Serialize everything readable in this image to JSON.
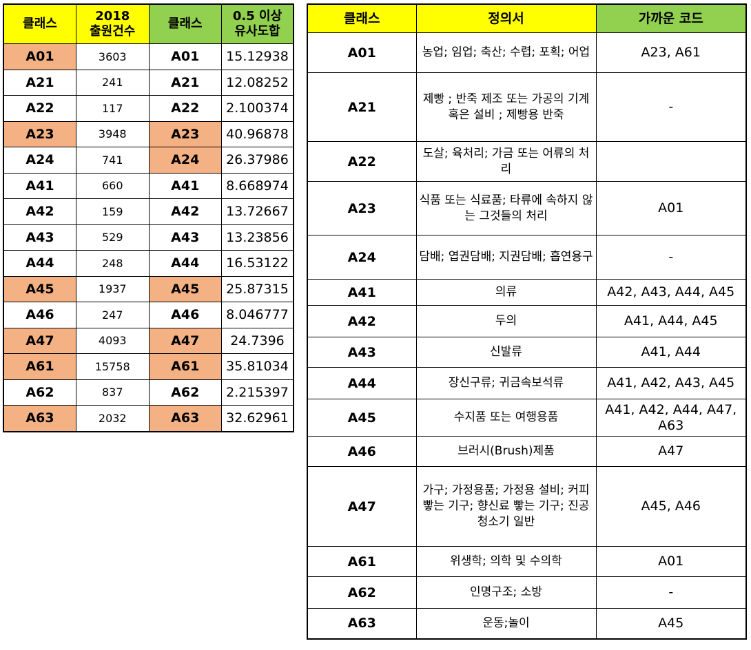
{
  "left_table": {
    "headers": {
      "class1": "클래스",
      "count": "2018\n출원건수",
      "class2": "클래스",
      "similarity": "0.5 이상\n유사도합"
    },
    "rows": [
      {
        "class": "A01",
        "count": "3603",
        "class2": "A01",
        "sim": "15.12938",
        "hl1": true,
        "hl2": false
      },
      {
        "class": "A21",
        "count": "241",
        "class2": "A21",
        "sim": "12.08252",
        "hl1": false,
        "hl2": false
      },
      {
        "class": "A22",
        "count": "117",
        "class2": "A22",
        "sim": "2.100374",
        "hl1": false,
        "hl2": false
      },
      {
        "class": "A23",
        "count": "3948",
        "class2": "A23",
        "sim": "40.96878",
        "hl1": true,
        "hl2": true
      },
      {
        "class": "A24",
        "count": "741",
        "class2": "A24",
        "sim": "26.37986",
        "hl1": false,
        "hl2": true
      },
      {
        "class": "A41",
        "count": "660",
        "class2": "A41",
        "sim": "8.668974",
        "hl1": false,
        "hl2": false
      },
      {
        "class": "A42",
        "count": "159",
        "class2": "A42",
        "sim": "13.72667",
        "hl1": false,
        "hl2": false
      },
      {
        "class": "A43",
        "count": "529",
        "class2": "A43",
        "sim": "13.23856",
        "hl1": false,
        "hl2": false
      },
      {
        "class": "A44",
        "count": "248",
        "class2": "A44",
        "sim": "16.53122",
        "hl1": false,
        "hl2": false
      },
      {
        "class": "A45",
        "count": "1937",
        "class2": "A45",
        "sim": "25.87315",
        "hl1": true,
        "hl2": true
      },
      {
        "class": "A46",
        "count": "247",
        "class2": "A46",
        "sim": "8.046777",
        "hl1": false,
        "hl2": false
      },
      {
        "class": "A47",
        "count": "4093",
        "class2": "A47",
        "sim": "24.7396",
        "hl1": true,
        "hl2": true
      },
      {
        "class": "A61",
        "count": "15758",
        "class2": "A61",
        "sim": "35.81034",
        "hl1": true,
        "hl2": true
      },
      {
        "class": "A62",
        "count": "837",
        "class2": "A62",
        "sim": "2.215397",
        "hl1": false,
        "hl2": false
      },
      {
        "class": "A63",
        "count": "2032",
        "class2": "A63",
        "sim": "32.62961",
        "hl1": true,
        "hl2": true
      }
    ]
  },
  "right_table": {
    "headers": {
      "class": "클래스",
      "definition": "정의서",
      "near": "가까운 코드"
    },
    "rows": [
      {
        "class": "A01",
        "definition": "농업; 임업; 축산; 수렵; 포획; 어업",
        "near": "A23, A61"
      },
      {
        "class": "A21",
        "definition": "제빵 ; 반죽 제조 또는 가공의 기계 혹은 설비 ; 제빵용 반죽",
        "near": "-"
      },
      {
        "class": "A22",
        "definition": "도살; 육처리; 가금 또는 어류의 처리",
        "near": ""
      },
      {
        "class": "A23",
        "definition": "식품 또는 식료품; 타류에 속하지 않는 그것들의 처리",
        "near": "A01"
      },
      {
        "class": "A24",
        "definition": "담배; 엽권담배; 지권담배; 흡연용구",
        "near": "-"
      },
      {
        "class": "A41",
        "definition": "의류",
        "near": "A42, A43, A44, A45"
      },
      {
        "class": "A42",
        "definition": "두의",
        "near": "A41, A44, A45"
      },
      {
        "class": "A43",
        "definition": "신발류",
        "near": "A41, A44"
      },
      {
        "class": "A44",
        "definition": "장신구류; 귀금속보석류",
        "near": "A41, A42, A43, A45"
      },
      {
        "class": "A45",
        "definition": "수지품 또는 여행용품",
        "near": "A41, A42, A44, A47, A63"
      },
      {
        "class": "A46",
        "definition": "브러시(Brush)제품",
        "near": "A47"
      },
      {
        "class": "A47",
        "definition": "가구; 가정용품; 가정용 설비; 커피 빻는 기구; 향신료 빻는 기구; 진공청소기 일반",
        "near": "A45, A46"
      },
      {
        "class": "A61",
        "definition": "위생학; 의학 및 수의학",
        "near": "A01"
      },
      {
        "class": "A62",
        "definition": "인명구조; 소방",
        "near": "-"
      },
      {
        "class": "A63",
        "definition": "운동;놀이",
        "near": "A45"
      }
    ]
  },
  "colors": {
    "header_yellow": "#ffff00",
    "header_green": "#92d050",
    "highlight_orange": "#f4b183"
  }
}
